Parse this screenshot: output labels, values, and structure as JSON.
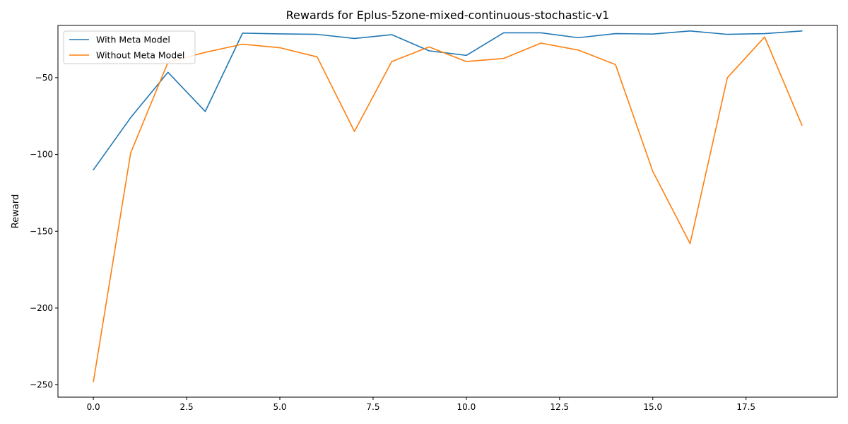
{
  "chart_data": {
    "type": "line",
    "title": "Rewards for Eplus-5zone-mixed-continuous-stochastic-v1",
    "xlabel": "",
    "ylabel": "Reward",
    "x": [
      0,
      1,
      2,
      3,
      4,
      5,
      6,
      7,
      8,
      9,
      10,
      11,
      12,
      13,
      14,
      15,
      16,
      17,
      18,
      19
    ],
    "xlim": [
      -0.95,
      19.95
    ],
    "ylim": [
      -258,
      -16
    ],
    "xticks": [
      0.0,
      2.5,
      5.0,
      7.5,
      10.0,
      12.5,
      15.0,
      17.5
    ],
    "xtick_labels": [
      "0.0",
      "2.5",
      "5.0",
      "7.5",
      "10.0",
      "12.5",
      "15.0",
      "17.5"
    ],
    "yticks": [
      -250,
      -200,
      -150,
      -100,
      -50
    ],
    "ytick_labels": [
      "−250",
      "−200",
      "−150",
      "−100",
      "−50"
    ],
    "grid": false,
    "legend_position": "top-left",
    "series": [
      {
        "name": "With Meta Model",
        "color": "#1f77b4",
        "values": [
          -110,
          -76,
          -46.5,
          -72,
          -21,
          -21.5,
          -21.8,
          -24.5,
          -22,
          -32.5,
          -35.5,
          -20.8,
          -20.8,
          -24,
          -21.3,
          -21.6,
          -19.6,
          -21.8,
          -21.3,
          -19.6
        ]
      },
      {
        "name": "Without Meta Model",
        "color": "#ff7f0e",
        "values": [
          -248,
          -99,
          -40,
          -33.5,
          -28.2,
          -30.5,
          -36.5,
          -85,
          -39.5,
          -30,
          -39.5,
          -37.5,
          -27.5,
          -32,
          -41.5,
          -111,
          -158,
          -50,
          -23.5,
          -81
        ]
      }
    ]
  }
}
